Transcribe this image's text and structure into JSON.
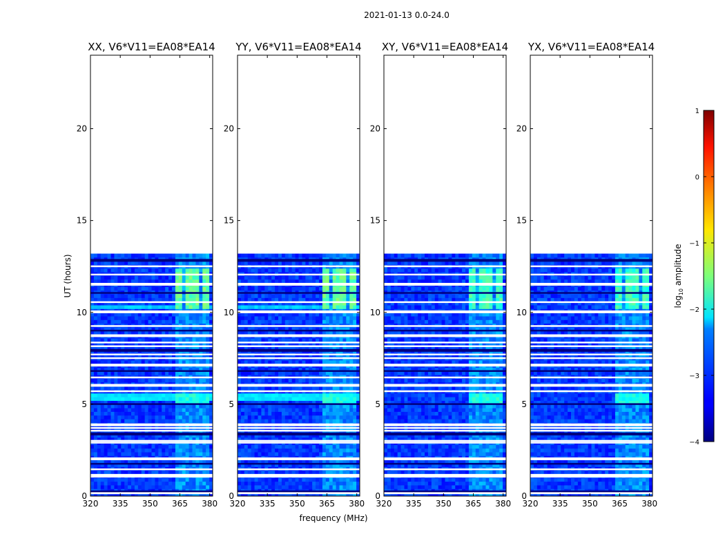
{
  "figure": {
    "suptitle": "2021-01-13 0.0-24.0",
    "xlabel": "frequency (MHz)",
    "ylabel": "UT (hours)"
  },
  "chart_data": {
    "type": "heatmap",
    "xlim": [
      320,
      381.5
    ],
    "ylim": [
      0,
      24
    ],
    "xticks": [
      320,
      335,
      350,
      365,
      380
    ],
    "yticks": [
      0,
      5,
      10,
      15,
      20
    ],
    "data_extent_hours": [
      0,
      13.2
    ],
    "bright_band_mhz": [
      363,
      379
    ],
    "panels": [
      {
        "title": "XX, V6*V11=EA08*EA14",
        "polarization": "XX"
      },
      {
        "title": "YY, V6*V11=EA08*EA14",
        "polarization": "YY"
      },
      {
        "title": "XY, V6*V11=EA08*EA14",
        "polarization": "XY"
      },
      {
        "title": "YX, V6*V11=EA08*EA14",
        "polarization": "YX"
      }
    ],
    "colorbar": {
      "label": "log10 amplitude",
      "label_main": "log",
      "label_sub": "10",
      "label_tail": " amplitude",
      "min": -4,
      "max": 1,
      "ticks": [
        "1",
        "0",
        "−1",
        "−2",
        "−3",
        "−4"
      ],
      "colormap": "jet"
    },
    "blank_rows_hours": [
      0.2,
      0.25,
      1.05,
      1.15,
      1.45,
      1.75,
      2.05,
      2.9,
      3.0,
      3.4,
      3.55,
      3.7,
      3.9,
      5.0,
      5.7,
      6.05,
      6.45,
      6.8,
      7.15,
      7.5,
      7.7,
      7.95,
      8.15,
      8.35,
      8.75,
      9.0,
      9.25,
      10.05,
      10.55,
      11.05,
      11.55,
      12.05,
      12.5,
      12.85
    ]
  }
}
